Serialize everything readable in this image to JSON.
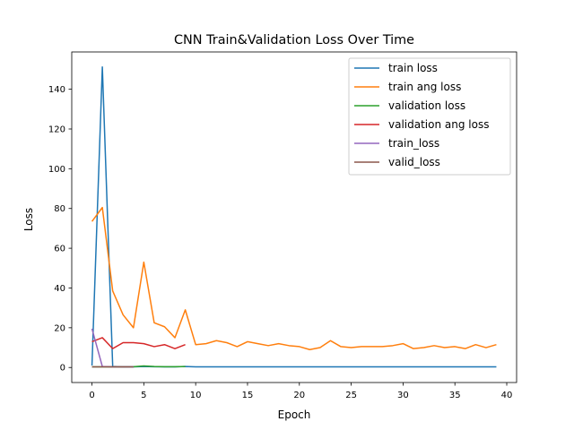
{
  "chart_data": {
    "type": "line",
    "title": "CNN Train&Validation Loss Over Time",
    "xlabel": "Epoch",
    "ylabel": "Loss",
    "xlim": [
      -1.95,
      40.95
    ],
    "ylim": [
      -7.56,
      158.76
    ],
    "xticks": [
      0,
      5,
      10,
      15,
      20,
      25,
      30,
      35,
      40
    ],
    "yticks": [
      0,
      20,
      40,
      60,
      80,
      100,
      120,
      140
    ],
    "grid": false,
    "legend_position": "top-right",
    "series": [
      {
        "name": "train loss",
        "color": "#1f77b4",
        "x": [
          0,
          1,
          2,
          3,
          4,
          5,
          6,
          7,
          8,
          9,
          10,
          11,
          12,
          13,
          14,
          15,
          16,
          17,
          18,
          19,
          20,
          21,
          22,
          23,
          24,
          25,
          26,
          27,
          28,
          29,
          30,
          31,
          32,
          33,
          34,
          35,
          36,
          37,
          38,
          39
        ],
        "y": [
          1.0,
          151.2,
          0.5,
          0.3,
          0.3,
          0.5,
          0.4,
          0.3,
          0.3,
          0.5,
          0.3,
          0.3,
          0.3,
          0.3,
          0.3,
          0.3,
          0.3,
          0.3,
          0.3,
          0.3,
          0.3,
          0.3,
          0.3,
          0.3,
          0.3,
          0.3,
          0.3,
          0.3,
          0.3,
          0.3,
          0.3,
          0.3,
          0.3,
          0.3,
          0.3,
          0.3,
          0.3,
          0.3,
          0.3,
          0.3
        ]
      },
      {
        "name": "train ang loss",
        "color": "#ff7f0e",
        "x": [
          0,
          1,
          2,
          3,
          4,
          5,
          6,
          7,
          8,
          9,
          10,
          11,
          12,
          13,
          14,
          15,
          16,
          17,
          18,
          19,
          20,
          21,
          22,
          23,
          24,
          25,
          26,
          27,
          28,
          29,
          30,
          31,
          32,
          33,
          34,
          35,
          36,
          37,
          38,
          39
        ],
        "y": [
          73.5,
          80.5,
          38.5,
          26.5,
          20.0,
          53.0,
          22.5,
          20.5,
          15.0,
          29.0,
          11.5,
          12.0,
          13.5,
          12.5,
          10.5,
          13.0,
          12.0,
          11.0,
          12.0,
          11.0,
          10.5,
          9.0,
          10.0,
          13.5,
          10.5,
          10.0,
          10.5,
          10.5,
          10.5,
          11.0,
          12.0,
          9.5,
          10.0,
          11.0,
          10.0,
          10.5,
          9.5,
          11.5,
          10.0,
          11.5
        ]
      },
      {
        "name": "validation loss",
        "color": "#2ca02c",
        "x": [
          0,
          1,
          2,
          3,
          4,
          5,
          6,
          7,
          8,
          9
        ],
        "y": [
          0.3,
          0.3,
          0.3,
          0.3,
          0.4,
          0.8,
          0.5,
          0.4,
          0.4,
          0.5
        ]
      },
      {
        "name": "validation ang loss",
        "color": "#d62728",
        "x": [
          0,
          1,
          2,
          3,
          4,
          5,
          6,
          7,
          8,
          9
        ],
        "y": [
          13.0,
          15.0,
          9.5,
          12.5,
          12.5,
          12.0,
          10.5,
          11.5,
          9.5,
          11.5
        ]
      },
      {
        "name": "train_loss",
        "color": "#9467bd",
        "x": [
          0,
          1,
          2,
          3,
          4
        ],
        "y": [
          19.5,
          0.5,
          0.3,
          0.3,
          0.3
        ]
      },
      {
        "name": "valid_loss",
        "color": "#8c564b",
        "x": [
          0,
          1,
          2,
          3,
          4
        ],
        "y": [
          0.3,
          0.3,
          0.3,
          0.3,
          0.3
        ]
      }
    ]
  }
}
